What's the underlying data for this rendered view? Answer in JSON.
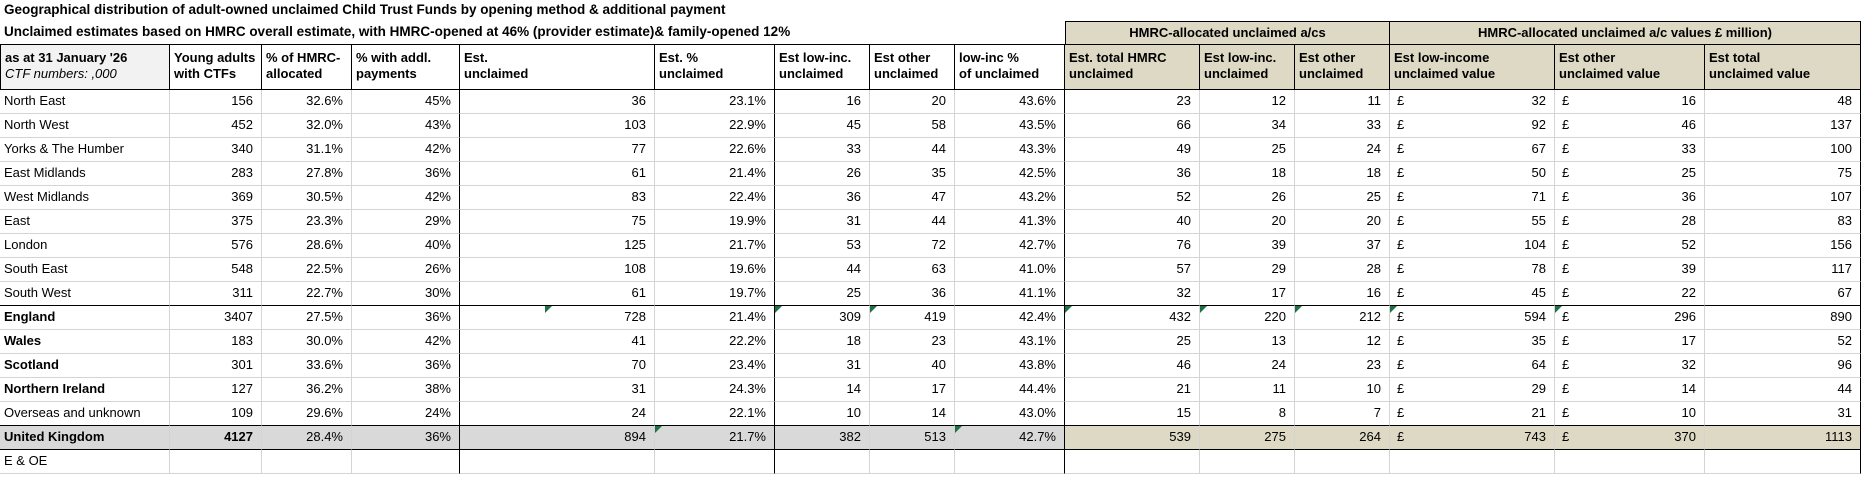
{
  "title": "Geographical distribution of adult-owned unclaimed Child Trust Funds by opening method & additional payment",
  "subtitle": "Unclaimed estimates based on HMRC overall estimate, with HMRC-opened at 46% (provider estimate)& family-opened 12%",
  "groups": [
    {
      "label": "HMRC-allocated unclaimed a/cs"
    },
    {
      "label": "HMRC-allocated unclaimed a/c values £ million)"
    }
  ],
  "corner": {
    "line1": "as at 31 January '26",
    "line2": "CTF numbers: ,000"
  },
  "header_columns": [
    {
      "line1": "Young adults",
      "line2": "with CTFs"
    },
    {
      "line1": "% of HMRC-",
      "line2": "allocated"
    },
    {
      "line1": "% with addl.",
      "line2": "payments"
    },
    {
      "line1": "Est.",
      "line2": "unclaimed"
    },
    {
      "line1": "Est. %",
      "line2": "unclaimed"
    },
    {
      "line1": "Est low-inc.",
      "line2": "unclaimed"
    },
    {
      "line1": "Est other",
      "line2": "unclaimed"
    },
    {
      "line1": "low-inc %",
      "line2": "of unclaimed"
    },
    {
      "line1": "Est. total HMRC",
      "line2": "unclaimed"
    },
    {
      "line1": "Est low-inc.",
      "line2": "unclaimed"
    },
    {
      "line1": "Est other",
      "line2": "unclaimed"
    },
    {
      "line1": "Est low-income",
      "line2": "unclaimed value"
    },
    {
      "line1": "Est other",
      "line2": "unclaimed value"
    },
    {
      "line1": "Est total",
      "line2": "unclaimed value"
    }
  ],
  "rows": [
    {
      "region": "North East",
      "values": [
        "156",
        "32.6%",
        "45%",
        "36",
        "23.1%",
        "16",
        "20",
        "43.6%",
        "23",
        "12",
        "11",
        "32",
        "16",
        "48"
      ],
      "tri": []
    },
    {
      "region": "North West",
      "values": [
        "452",
        "32.0%",
        "43%",
        "103",
        "22.9%",
        "45",
        "58",
        "43.5%",
        "66",
        "34",
        "33",
        "92",
        "46",
        "137"
      ],
      "tri": []
    },
    {
      "region": "Yorks & The Humber",
      "values": [
        "340",
        "31.1%",
        "42%",
        "77",
        "22.6%",
        "33",
        "44",
        "43.3%",
        "49",
        "25",
        "24",
        "67",
        "33",
        "100"
      ],
      "tri": []
    },
    {
      "region": "East Midlands",
      "values": [
        "283",
        "27.8%",
        "36%",
        "61",
        "21.4%",
        "26",
        "35",
        "42.5%",
        "36",
        "18",
        "18",
        "50",
        "25",
        "75"
      ],
      "tri": []
    },
    {
      "region": "West Midlands",
      "values": [
        "369",
        "30.5%",
        "42%",
        "83",
        "22.4%",
        "36",
        "47",
        "43.2%",
        "52",
        "26",
        "25",
        "71",
        "36",
        "107"
      ],
      "tri": []
    },
    {
      "region": "East",
      "values": [
        "375",
        "23.3%",
        "29%",
        "75",
        "19.9%",
        "31",
        "44",
        "41.3%",
        "40",
        "20",
        "20",
        "55",
        "28",
        "83"
      ],
      "tri": []
    },
    {
      "region": "London",
      "values": [
        "576",
        "28.6%",
        "40%",
        "125",
        "21.7%",
        "53",
        "72",
        "42.7%",
        "76",
        "39",
        "37",
        "104",
        "52",
        "156"
      ],
      "tri": []
    },
    {
      "region": "South East",
      "values": [
        "548",
        "22.5%",
        "26%",
        "108",
        "19.6%",
        "44",
        "63",
        "41.0%",
        "57",
        "29",
        "28",
        "78",
        "39",
        "117"
      ],
      "tri": []
    },
    {
      "region": "South West",
      "values": [
        "311",
        "22.7%",
        "30%",
        "61",
        "19.7%",
        "25",
        "36",
        "41.1%",
        "32",
        "17",
        "16",
        "45",
        "22",
        "67"
      ],
      "tri": []
    },
    {
      "region": "England",
      "values": [
        "3407",
        "27.5%",
        "36%",
        "728",
        "21.4%",
        "309",
        "419",
        "42.4%",
        "432",
        "220",
        "212",
        "594",
        "296",
        "890"
      ],
      "tri": [
        "e-mid",
        "g",
        "h",
        "j",
        "k",
        "l",
        "m",
        "n"
      ]
    },
    {
      "region": "Wales",
      "values": [
        "183",
        "30.0%",
        "42%",
        "41",
        "22.2%",
        "18",
        "23",
        "43.1%",
        "25",
        "13",
        "12",
        "35",
        "17",
        "52"
      ],
      "tri": []
    },
    {
      "region": "Scotland",
      "values": [
        "301",
        "33.6%",
        "36%",
        "70",
        "23.4%",
        "31",
        "40",
        "43.8%",
        "46",
        "24",
        "23",
        "64",
        "32",
        "96"
      ],
      "tri": []
    },
    {
      "region": "Northern Ireland",
      "values": [
        "127",
        "36.2%",
        "38%",
        "31",
        "24.3%",
        "14",
        "17",
        "44.4%",
        "21",
        "11",
        "10",
        "29",
        "14",
        "44"
      ],
      "tri": []
    },
    {
      "region": "Overseas and unknown",
      "values": [
        "109",
        "29.6%",
        "24%",
        "24",
        "22.1%",
        "10",
        "14",
        "43.0%",
        "15",
        "8",
        "7",
        "21",
        "10",
        "31"
      ],
      "tri": []
    },
    {
      "region": "United Kingdom",
      "values": [
        "4127",
        "28.4%",
        "36%",
        "894",
        "21.7%",
        "382",
        "513",
        "42.7%",
        "539",
        "275",
        "264",
        "743",
        "370",
        "1113"
      ],
      "tri": [
        "f",
        "i"
      ]
    },
    {
      "region": "E & OE",
      "values": [
        "",
        "",
        "",
        "",
        "",
        "",
        "",
        "",
        "",
        "",
        "",
        "",
        "",
        ""
      ],
      "tri": []
    }
  ],
  "currency_symbol": "£",
  "colors": {
    "group_header_bg": "#DDD9C4",
    "total_row_bg": "#D9D9D9",
    "corner_header_bg": "#F2F2F2",
    "gridline": "#D4D4D4",
    "flag_triangle_green": "#1E7145"
  }
}
